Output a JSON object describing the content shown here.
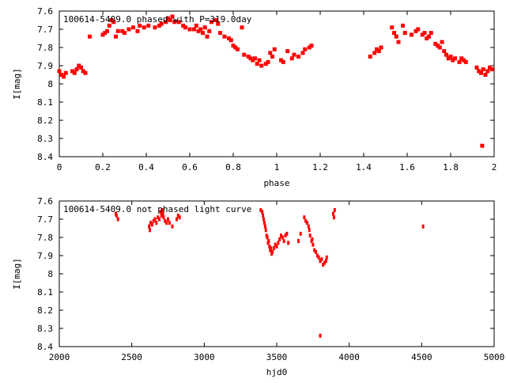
{
  "chart_data": [
    {
      "type": "scatter",
      "title": "100614-5409.0 phased with P=319.0day",
      "xlabel": "phase",
      "ylabel": "I[mag]",
      "xlim": [
        0,
        2
      ],
      "ylim": [
        7.6,
        8.4
      ],
      "y_inverted": true,
      "x_ticks": [
        "0",
        "0.2",
        "0.4",
        "0.6",
        "0.8",
        "1",
        "1.2",
        "1.4",
        "1.6",
        "1.8",
        "2"
      ],
      "y_ticks": [
        "7.6",
        "7.7",
        "7.8",
        "7.9",
        "8",
        "8.1",
        "8.2",
        "8.3",
        "8.4"
      ],
      "marker_color": "#ff0000",
      "series": [
        {
          "points": [
            [
              0.0,
              7.93
            ],
            [
              0.01,
              7.95
            ],
            [
              0.02,
              7.96
            ],
            [
              0.03,
              7.94
            ],
            [
              0.06,
              7.93
            ],
            [
              0.07,
              7.94
            ],
            [
              0.08,
              7.92
            ],
            [
              0.09,
              7.9
            ],
            [
              0.1,
              7.91
            ],
            [
              0.11,
              7.93
            ],
            [
              0.12,
              7.94
            ],
            [
              0.14,
              7.74
            ],
            [
              0.2,
              7.73
            ],
            [
              0.21,
              7.72
            ],
            [
              0.22,
              7.71
            ],
            [
              0.23,
              7.68
            ],
            [
              0.24,
              7.65
            ],
            [
              0.25,
              7.66
            ],
            [
              0.26,
              7.74
            ],
            [
              0.27,
              7.71
            ],
            [
              0.29,
              7.71
            ],
            [
              0.3,
              7.72
            ],
            [
              0.32,
              7.7
            ],
            [
              0.34,
              7.69
            ],
            [
              0.36,
              7.71
            ],
            [
              0.37,
              7.68
            ],
            [
              0.39,
              7.69
            ],
            [
              0.41,
              7.68
            ],
            [
              0.44,
              7.69
            ],
            [
              0.46,
              7.68
            ],
            [
              0.47,
              7.67
            ],
            [
              0.49,
              7.66
            ],
            [
              0.5,
              7.64
            ],
            [
              0.51,
              7.65
            ],
            [
              0.52,
              7.63
            ],
            [
              0.53,
              7.66
            ],
            [
              0.55,
              7.66
            ],
            [
              0.57,
              7.68
            ],
            [
              0.58,
              7.69
            ],
            [
              0.6,
              7.7
            ],
            [
              0.62,
              7.7
            ],
            [
              0.63,
              7.68
            ],
            [
              0.64,
              7.71
            ],
            [
              0.65,
              7.7
            ],
            [
              0.66,
              7.72
            ],
            [
              0.67,
              7.69
            ],
            [
              0.68,
              7.74
            ],
            [
              0.69,
              7.71
            ],
            [
              0.7,
              7.66
            ],
            [
              0.72,
              7.65
            ],
            [
              0.73,
              7.67
            ],
            [
              0.74,
              7.72
            ],
            [
              0.76,
              7.74
            ],
            [
              0.78,
              7.75
            ],
            [
              0.79,
              7.76
            ],
            [
              0.8,
              7.79
            ],
            [
              0.81,
              7.8
            ],
            [
              0.82,
              7.81
            ],
            [
              0.84,
              7.69
            ],
            [
              0.85,
              7.84
            ],
            [
              0.87,
              7.85
            ],
            [
              0.88,
              7.86
            ],
            [
              0.89,
              7.87
            ],
            [
              0.9,
              7.86
            ],
            [
              0.91,
              7.89
            ],
            [
              0.92,
              7.87
            ],
            [
              0.93,
              7.9
            ],
            [
              0.95,
              7.89
            ],
            [
              0.96,
              7.88
            ],
            [
              0.97,
              7.83
            ],
            [
              0.98,
              7.85
            ],
            [
              0.99,
              7.81
            ],
            [
              1.02,
              7.87
            ],
            [
              1.03,
              7.88
            ],
            [
              1.05,
              7.82
            ],
            [
              1.07,
              7.86
            ],
            [
              1.08,
              7.84
            ],
            [
              1.1,
              7.85
            ],
            [
              1.12,
              7.83
            ],
            [
              1.13,
              7.81
            ],
            [
              1.15,
              7.8
            ],
            [
              1.16,
              7.79
            ],
            [
              1.43,
              7.85
            ],
            [
              1.45,
              7.83
            ],
            [
              1.46,
              7.81
            ],
            [
              1.47,
              7.82
            ],
            [
              1.48,
              7.8
            ],
            [
              1.53,
              7.69
            ],
            [
              1.54,
              7.72
            ],
            [
              1.55,
              7.74
            ],
            [
              1.56,
              7.77
            ],
            [
              1.58,
              7.68
            ],
            [
              1.59,
              7.72
            ],
            [
              1.62,
              7.73
            ],
            [
              1.64,
              7.71
            ],
            [
              1.65,
              7.7
            ],
            [
              1.67,
              7.73
            ],
            [
              1.68,
              7.72
            ],
            [
              1.69,
              7.75
            ],
            [
              1.7,
              7.74
            ],
            [
              1.71,
              7.72
            ],
            [
              1.73,
              7.78
            ],
            [
              1.74,
              7.79
            ],
            [
              1.75,
              7.8
            ],
            [
              1.76,
              7.77
            ],
            [
              1.77,
              7.82
            ],
            [
              1.78,
              7.84
            ],
            [
              1.79,
              7.86
            ],
            [
              1.8,
              7.85
            ],
            [
              1.81,
              7.87
            ],
            [
              1.82,
              7.86
            ],
            [
              1.84,
              7.88
            ],
            [
              1.85,
              7.86
            ],
            [
              1.86,
              7.87
            ],
            [
              1.87,
              7.88
            ],
            [
              1.92,
              7.91
            ],
            [
              1.93,
              7.93
            ],
            [
              1.94,
              7.94
            ],
            [
              1.95,
              7.92
            ],
            [
              1.96,
              7.95
            ],
            [
              1.97,
              7.93
            ],
            [
              1.98,
              7.91
            ],
            [
              1.99,
              7.92
            ],
            [
              1.945,
              8.34
            ]
          ]
        }
      ]
    },
    {
      "type": "scatter",
      "title": "100614-5409.0 not phased light curve",
      "xlabel": "hjd0",
      "ylabel": "I[mag]",
      "xlim": [
        2000,
        5000
      ],
      "ylim": [
        7.6,
        8.4
      ],
      "y_inverted": true,
      "x_ticks": [
        "2000",
        "2500",
        "3000",
        "3500",
        "4000",
        "4500",
        "5000"
      ],
      "y_ticks": [
        "7.6",
        "7.7",
        "7.8",
        "7.9",
        "8",
        "8.1",
        "8.2",
        "8.3",
        "8.4"
      ],
      "marker_color": "#ff0000",
      "series": [
        {
          "points": [
            [
              2390,
              7.67
            ],
            [
              2395,
              7.68
            ],
            [
              2405,
              7.7
            ],
            [
              2620,
              7.74
            ],
            [
              2625,
              7.76
            ],
            [
              2630,
              7.72
            ],
            [
              2640,
              7.73
            ],
            [
              2650,
              7.71
            ],
            [
              2660,
              7.7
            ],
            [
              2670,
              7.72
            ],
            [
              2680,
              7.69
            ],
            [
              2690,
              7.7
            ],
            [
              2700,
              7.66
            ],
            [
              2705,
              7.68
            ],
            [
              2710,
              7.65
            ],
            [
              2715,
              7.67
            ],
            [
              2720,
              7.69
            ],
            [
              2730,
              7.71
            ],
            [
              2740,
              7.72
            ],
            [
              2750,
              7.7
            ],
            [
              2760,
              7.72
            ],
            [
              2780,
              7.74
            ],
            [
              2810,
              7.7
            ],
            [
              2820,
              7.68
            ],
            [
              2830,
              7.69
            ],
            [
              3390,
              7.65
            ],
            [
              3400,
              7.66
            ],
            [
              3405,
              7.68
            ],
            [
              3410,
              7.7
            ],
            [
              3415,
              7.72
            ],
            [
              3420,
              7.74
            ],
            [
              3425,
              7.76
            ],
            [
              3430,
              7.79
            ],
            [
              3435,
              7.8
            ],
            [
              3440,
              7.83
            ],
            [
              3445,
              7.82
            ],
            [
              3450,
              7.85
            ],
            [
              3455,
              7.87
            ],
            [
              3460,
              7.86
            ],
            [
              3465,
              7.89
            ],
            [
              3470,
              7.88
            ],
            [
              3480,
              7.86
            ],
            [
              3490,
              7.84
            ],
            [
              3500,
              7.85
            ],
            [
              3510,
              7.83
            ],
            [
              3520,
              7.81
            ],
            [
              3530,
              7.79
            ],
            [
              3540,
              7.8
            ],
            [
              3550,
              7.82
            ],
            [
              3560,
              7.79
            ],
            [
              3570,
              7.78
            ],
            [
              3580,
              7.83
            ],
            [
              3650,
              7.82
            ],
            [
              3665,
              7.78
            ],
            [
              3690,
              7.69
            ],
            [
              3700,
              7.71
            ],
            [
              3710,
              7.72
            ],
            [
              3720,
              7.74
            ],
            [
              3725,
              7.76
            ],
            [
              3730,
              7.79
            ],
            [
              3740,
              7.82
            ],
            [
              3745,
              7.81
            ],
            [
              3750,
              7.84
            ],
            [
              3760,
              7.87
            ],
            [
              3770,
              7.88
            ],
            [
              3780,
              7.9
            ],
            [
              3790,
              7.91
            ],
            [
              3800,
              7.93
            ],
            [
              3810,
              7.92
            ],
            [
              3820,
              7.95
            ],
            [
              3830,
              7.94
            ],
            [
              3840,
              7.93
            ],
            [
              3845,
              7.91
            ],
            [
              3800,
              8.34
            ],
            [
              3890,
              7.67
            ],
            [
              3895,
              7.69
            ],
            [
              3900,
              7.65
            ],
            [
              4510,
              7.74
            ]
          ]
        }
      ]
    }
  ]
}
